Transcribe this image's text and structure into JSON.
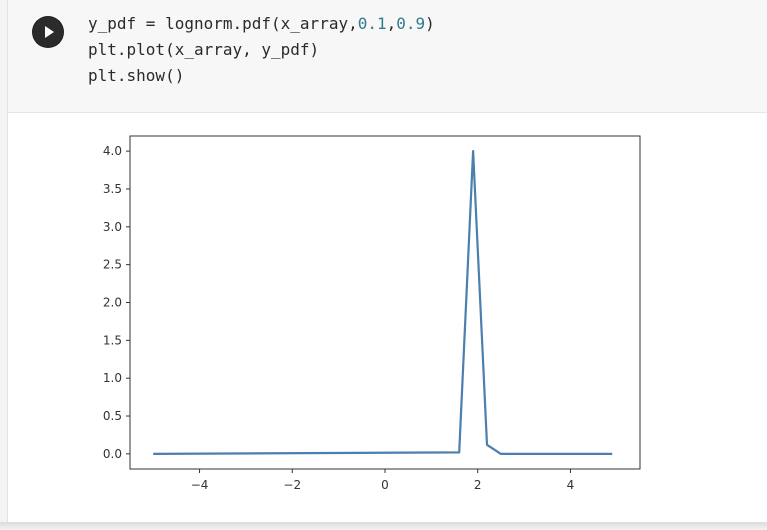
{
  "notebook": {
    "code_lines": [
      {
        "prefix": "y_pdf = lognorm.pdf(x_array,",
        "n1": "0.1",
        "sep": ",",
        "n2": "0.9",
        "suffix": ")"
      },
      {
        "text": "plt.plot(x_array, y_pdf)"
      },
      {
        "text": "plt.show()"
      }
    ],
    "run_icon": "play-icon"
  },
  "chart_data": {
    "type": "line",
    "title": "",
    "xlabel": "",
    "ylabel": "",
    "xlim": [
      -5.5,
      5.5
    ],
    "ylim": [
      -0.2,
      4.2
    ],
    "xticks": [
      -4,
      -2,
      0,
      2,
      4
    ],
    "xtick_labels": [
      "−4",
      "−2",
      "0",
      "2",
      "4"
    ],
    "yticks": [
      0.0,
      0.5,
      1.0,
      1.5,
      2.0,
      2.5,
      3.0,
      3.5,
      4.0
    ],
    "ytick_labels": [
      "0.0",
      "0.5",
      "1.0",
      "1.5",
      "2.0",
      "2.5",
      "3.0",
      "3.5",
      "4.0"
    ],
    "grid": false,
    "line_color": "#4a7fae",
    "series": [
      {
        "x": [
          -5.0,
          1.6,
          1.9,
          2.2,
          2.5,
          4.9
        ],
        "y": [
          0.0,
          0.02,
          4.0,
          0.12,
          0.0,
          0.0
        ]
      }
    ]
  }
}
